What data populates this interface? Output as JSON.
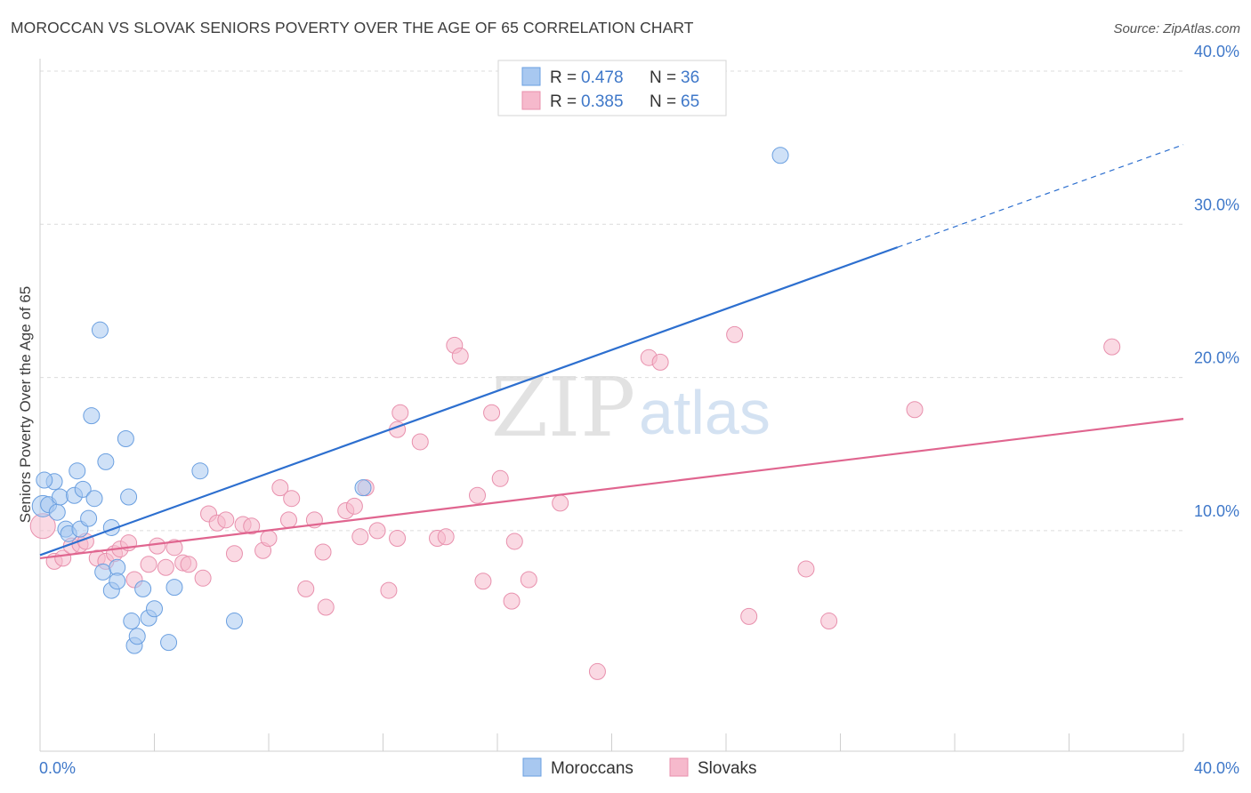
{
  "title": "MOROCCAN VS SLOVAK SENIORS POVERTY OVER THE AGE OF 65 CORRELATION CHART",
  "source": "Source: ZipAtlas.com",
  "watermark": {
    "zip": "ZIP",
    "atlas": "atlas"
  },
  "colors": {
    "moroccans_fill": "#a8c8f0",
    "moroccans_stroke": "#6a9fe0",
    "moroccans_line": "#2d6fcf",
    "slovaks_fill": "#f6b9cc",
    "slovaks_stroke": "#e890ad",
    "slovaks_line": "#e0658f",
    "tick_text": "#3f78c9",
    "grid": "#dcdcdc"
  },
  "legend_stats": [
    {
      "r_label": "R = ",
      "r_value": "0.478",
      "n_label": "N = ",
      "n_value": "36"
    },
    {
      "r_label": "R = ",
      "r_value": "0.385",
      "n_label": "N = ",
      "n_value": "65"
    }
  ],
  "chart_data": {
    "type": "scatter",
    "title": "MOROCCAN VS SLOVAK SENIORS POVERTY OVER THE AGE OF 65 CORRELATION CHART",
    "xlabel": "",
    "ylabel": "Seniors Poverty Over the Age of 65",
    "xlim": [
      0,
      40
    ],
    "ylim": [
      0,
      40
    ],
    "x_tick_labels": [
      "0.0%",
      "40.0%"
    ],
    "y_ticks": [
      10,
      20,
      30,
      40
    ],
    "y_tick_labels": [
      "10.0%",
      "20.0%",
      "30.0%",
      "40.0%"
    ],
    "grid": true,
    "legend_position": "bottom-center",
    "series": [
      {
        "name": "Moroccans",
        "r": 0.478,
        "n": 36,
        "trend": {
          "x0": 0,
          "y0": 8.4,
          "x1": 30,
          "y1": 28.5,
          "dashed_to_x": 40,
          "dashed_to_y": 35.2
        },
        "points": [
          [
            0.1,
            11.6
          ],
          [
            0.3,
            11.7
          ],
          [
            0.5,
            13.2
          ],
          [
            0.6,
            11.2
          ],
          [
            0.7,
            12.2
          ],
          [
            0.9,
            10.1
          ],
          [
            1.0,
            9.8
          ],
          [
            1.2,
            12.3
          ],
          [
            1.3,
            13.9
          ],
          [
            1.4,
            10.1
          ],
          [
            1.5,
            12.7
          ],
          [
            1.7,
            10.8
          ],
          [
            1.8,
            17.5
          ],
          [
            1.9,
            12.1
          ],
          [
            2.1,
            23.1
          ],
          [
            2.2,
            7.3
          ],
          [
            2.3,
            14.5
          ],
          [
            2.5,
            10.2
          ],
          [
            2.5,
            6.1
          ],
          [
            2.7,
            7.6
          ],
          [
            2.7,
            6.7
          ],
          [
            3.0,
            16.0
          ],
          [
            3.1,
            12.2
          ],
          [
            3.2,
            4.1
          ],
          [
            3.3,
            2.5
          ],
          [
            3.4,
            3.1
          ],
          [
            3.6,
            6.2
          ],
          [
            3.8,
            4.3
          ],
          [
            4.0,
            4.9
          ],
          [
            4.5,
            2.7
          ],
          [
            4.7,
            6.3
          ],
          [
            5.6,
            13.9
          ],
          [
            6.8,
            4.1
          ],
          [
            11.3,
            12.8
          ],
          [
            25.9,
            34.5
          ],
          [
            0.15,
            13.3
          ]
        ]
      },
      {
        "name": "Slovaks",
        "r": 0.385,
        "n": 65,
        "trend": {
          "x0": 0,
          "y0": 8.2,
          "x1": 40,
          "y1": 17.3
        },
        "points": [
          [
            0.1,
            10.3
          ],
          [
            0.5,
            8.0
          ],
          [
            0.8,
            8.2
          ],
          [
            1.1,
            9.0
          ],
          [
            1.4,
            9.1
          ],
          [
            1.6,
            9.3
          ],
          [
            2.0,
            8.2
          ],
          [
            2.3,
            8.0
          ],
          [
            2.6,
            8.5
          ],
          [
            2.8,
            8.8
          ],
          [
            3.1,
            9.2
          ],
          [
            3.3,
            6.8
          ],
          [
            3.8,
            7.8
          ],
          [
            4.1,
            9.0
          ],
          [
            4.4,
            7.6
          ],
          [
            4.7,
            8.9
          ],
          [
            5.0,
            7.9
          ],
          [
            5.2,
            7.8
          ],
          [
            5.7,
            6.9
          ],
          [
            5.9,
            11.1
          ],
          [
            6.2,
            10.5
          ],
          [
            6.5,
            10.7
          ],
          [
            6.8,
            8.5
          ],
          [
            7.1,
            10.4
          ],
          [
            7.4,
            10.3
          ],
          [
            7.8,
            8.7
          ],
          [
            8.0,
            9.5
          ],
          [
            8.4,
            12.8
          ],
          [
            8.7,
            10.7
          ],
          [
            8.8,
            12.1
          ],
          [
            9.3,
            6.2
          ],
          [
            9.6,
            10.7
          ],
          [
            9.9,
            8.6
          ],
          [
            10.0,
            5.0
          ],
          [
            10.7,
            11.3
          ],
          [
            11.0,
            11.6
          ],
          [
            11.2,
            9.6
          ],
          [
            11.4,
            12.8
          ],
          [
            11.8,
            10.0
          ],
          [
            12.2,
            6.1
          ],
          [
            12.6,
            17.7
          ],
          [
            12.5,
            16.6
          ],
          [
            12.5,
            9.5
          ],
          [
            13.3,
            15.8
          ],
          [
            13.9,
            9.5
          ],
          [
            14.2,
            9.6
          ],
          [
            14.5,
            22.1
          ],
          [
            14.7,
            21.4
          ],
          [
            15.3,
            12.3
          ],
          [
            15.5,
            6.7
          ],
          [
            15.8,
            17.7
          ],
          [
            16.1,
            13.4
          ],
          [
            16.5,
            5.4
          ],
          [
            16.6,
            9.3
          ],
          [
            17.1,
            6.8
          ],
          [
            18.2,
            11.8
          ],
          [
            21.3,
            21.3
          ],
          [
            21.7,
            21.0
          ],
          [
            24.3,
            22.8
          ],
          [
            24.8,
            4.4
          ],
          [
            26.8,
            7.5
          ],
          [
            27.6,
            4.1
          ],
          [
            30.6,
            17.9
          ],
          [
            37.5,
            22.0
          ],
          [
            19.5,
            0.8
          ]
        ]
      }
    ]
  }
}
